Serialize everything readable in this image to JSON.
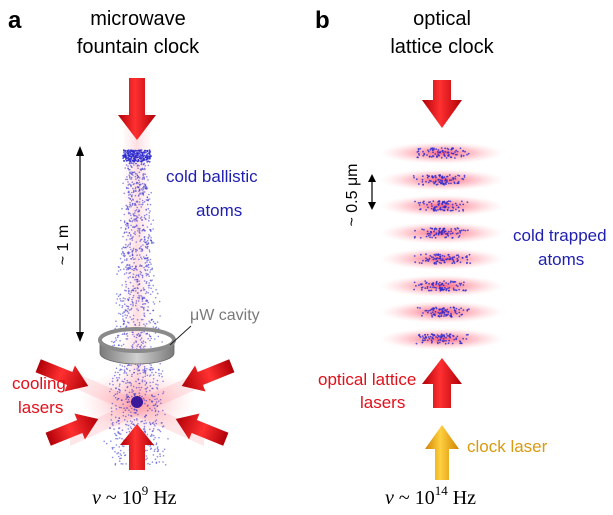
{
  "panel_a": {
    "letter": "a",
    "title_line1": "microwave",
    "title_line2": "fountain clock",
    "atoms_line1": "cold ballistic",
    "atoms_line2": "atoms",
    "height_label": "~ 1 m",
    "cavity_label": "μW cavity",
    "cooling_line1": "cooling",
    "cooling_line2": "lasers",
    "freq_symbol": "ν",
    "freq_text": " ~ 10",
    "freq_exp": "9",
    "freq_unit": " Hz"
  },
  "panel_b": {
    "letter": "b",
    "title_line1": "optical",
    "title_line2": "lattice clock",
    "spacing_label": "~ 0.5 μm",
    "atoms_line1": "cold trapped",
    "atoms_line2": "atoms",
    "lattice_line1": "optical lattice",
    "lattice_line2": "lasers",
    "clock_label": "clock laser",
    "freq_symbol": "ν",
    "freq_text": " ~ 10",
    "freq_exp": "14",
    "freq_unit": " Hz"
  },
  "colors": {
    "laser_red": "#e0101a",
    "atom_blue": "#2a2ad0",
    "clock_orange": "#f0a818",
    "cavity_gray": "#9a9a9a"
  }
}
